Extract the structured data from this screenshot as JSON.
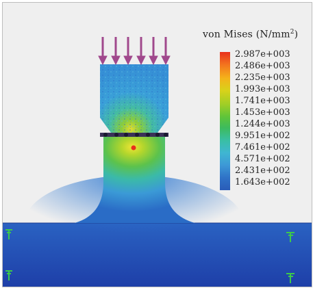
{
  "legend": {
    "title": "von Mises (N/mm",
    "title_sup": "2",
    "title_close": ")",
    "values": [
      "2.987e+003",
      "2.486e+003",
      "2.235e+003",
      "1.993e+003",
      "1.741e+003",
      "1.453e+003",
      "1.244e+003",
      "9.951e+002",
      "7.461e+002",
      "4.571e+002",
      "2.431e+002",
      "1.643e+002"
    ]
  },
  "colors": {
    "max": "#e8301c",
    "min": "#2a5cb8",
    "load_arrow": "#a0488c",
    "support": "#3dc94a",
    "background": "#efefef"
  },
  "icons": {
    "load": "downward-arrow",
    "support": "fixed-support-icon"
  }
}
